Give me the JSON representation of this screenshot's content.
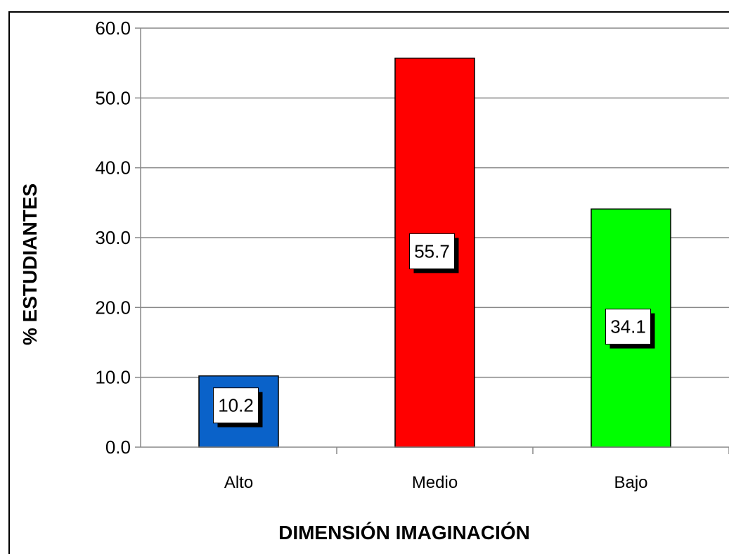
{
  "chart_data": {
    "type": "bar",
    "categories": [
      "Alto",
      "Medio",
      "Bajo"
    ],
    "values": [
      10.2,
      55.7,
      34.1
    ],
    "data_labels": [
      "10.2",
      "55.7",
      "34.1"
    ],
    "colors": [
      "#0a62c9",
      "#ff0000",
      "#00ff00"
    ],
    "title": "",
    "xlabel": "DIMENSIÓN IMAGINACIÓN",
    "ylabel": "% ESTUDIANTES",
    "ylim": [
      0,
      60
    ],
    "yticks": [
      "0.0",
      "10.0",
      "20.0",
      "30.0",
      "40.0",
      "50.0",
      "60.0"
    ],
    "grid": true,
    "legend": "none"
  }
}
